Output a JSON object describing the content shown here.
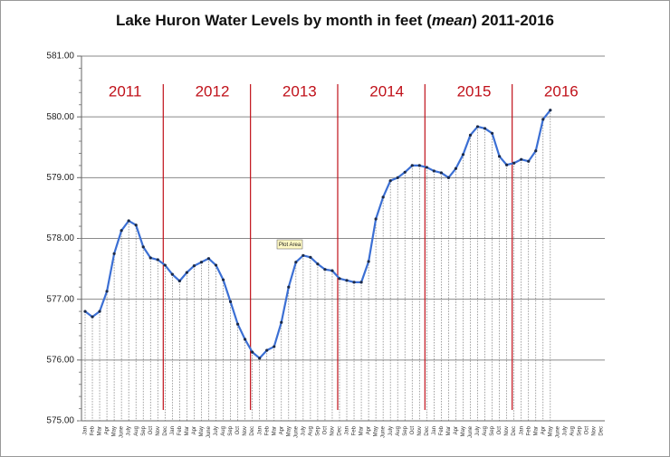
{
  "chart_data": {
    "type": "line",
    "title": [
      "Lake Huron Water Levels by month in feet (",
      "mean",
      ") 2011-2016"
    ],
    "categories": [
      "Jan",
      "Feb",
      "Mar",
      "Apr",
      "May",
      "June",
      "July",
      "Aug",
      "Sep",
      "Oct",
      "Nov",
      "Dec",
      "Jan",
      "Feb",
      "Mar",
      "Apr",
      "May",
      "June",
      "July",
      "Aug",
      "Sep",
      "Oct",
      "Nov",
      "Dec",
      "Jan",
      "Feb",
      "Mar",
      "Apr",
      "May",
      "June",
      "July",
      "Aug",
      "Sep",
      "Oct",
      "Nov",
      "Dec",
      "Jan",
      "Feb",
      "Mar",
      "Apr",
      "May",
      "June",
      "July",
      "Aug",
      "Sep",
      "Oct",
      "Nov",
      "Dec",
      "Jan",
      "Feb",
      "Mar",
      "Apr",
      "May",
      "June",
      "July",
      "Aug",
      "Sep",
      "Oct",
      "Nov",
      "Dec",
      "Jan",
      "Feb",
      "Mar",
      "Apr",
      "May",
      "June",
      "July",
      "Aug",
      "Sep",
      "Oct",
      "Nov",
      "Dec"
    ],
    "series": [
      {
        "color": "#3b6fd4",
        "values": [
          576.8,
          576.71,
          576.8,
          577.13,
          577.75,
          578.13,
          578.29,
          578.22,
          577.86,
          577.68,
          577.65,
          577.56,
          577.41,
          577.3,
          577.44,
          577.55,
          577.61,
          577.67,
          577.56,
          577.32,
          576.96,
          576.59,
          576.34,
          576.13,
          576.03,
          576.16,
          576.22,
          576.62,
          577.2,
          577.61,
          577.72,
          577.69,
          577.58,
          577.49,
          577.47,
          577.34,
          577.31,
          577.28,
          577.28,
          577.62,
          578.32,
          578.68,
          578.95,
          579.0,
          579.09,
          579.2,
          579.2,
          579.17,
          579.11,
          579.08,
          579.0,
          579.15,
          579.38,
          579.7,
          579.84,
          579.81,
          579.73,
          579.35,
          579.21,
          579.24,
          579.3,
          579.27,
          579.44,
          579.96,
          580.11,
          null,
          null,
          null,
          null,
          null,
          null,
          null
        ]
      }
    ],
    "ylim": [
      575,
      581
    ],
    "yticks": [
      {
        "value": 575,
        "label": "575.00"
      },
      {
        "value": 576,
        "label": "576.00"
      },
      {
        "value": 577,
        "label": "577.00"
      },
      {
        "value": 578,
        "label": "578.00"
      },
      {
        "value": 579,
        "label": "579.00"
      },
      {
        "value": 580,
        "label": "580.00"
      },
      {
        "value": 581,
        "label": "581.00"
      }
    ],
    "grid": true,
    "annotations": [
      "2011",
      "2012",
      "2013",
      "2014",
      "2015",
      "2016"
    ],
    "annotation_color": "#c0111a",
    "tooltip": "Plot Area"
  }
}
